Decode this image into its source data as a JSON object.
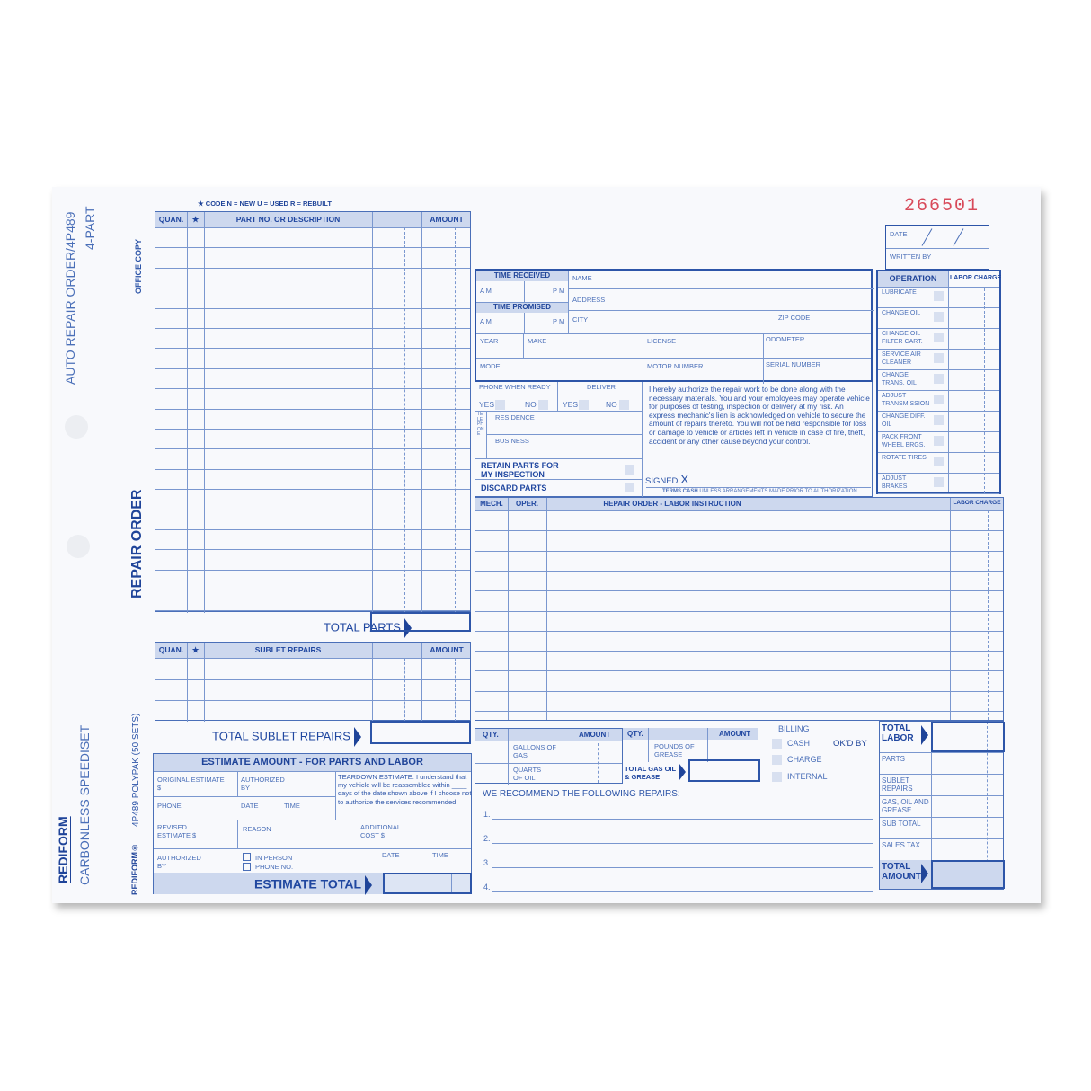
{
  "form_number": "266501",
  "colors": {
    "ink": "#2d55a8",
    "header_fill": "#cdd8ee",
    "paper": "#f8f9fc"
  },
  "side": {
    "title": "AUTO REPAIR ORDER/4P489",
    "parts": "4-PART",
    "copy": "OFFICE COPY",
    "repair_order": "REPAIR ORDER",
    "polypak": "4P489 POLYPAK (50 SETS)",
    "brand": "REDIFORM",
    "brand_small": "REDIFORM®",
    "speediset": "CARBONLESS SPEEDISET"
  },
  "parts": {
    "code_legend": "★ CODE  N = NEW   U = USED   R = REBUILT",
    "headers": [
      "QUAN.",
      "★",
      "PART NO. OR DESCRIPTION",
      "AMOUNT"
    ],
    "total": "TOTAL PARTS"
  },
  "sublet": {
    "headers": [
      "QUAN.",
      "★",
      "SUBLET REPAIRS",
      "AMOUNT"
    ],
    "total": "TOTAL SUBLET REPAIRS"
  },
  "estimate": {
    "title": "ESTIMATE AMOUNT - FOR PARTS AND LABOR",
    "original": "ORIGINAL ESTIMATE $",
    "authorized": "AUTHORIZED BY",
    "teardown": "TEARDOWN ESTIMATE:  I understand that my vehicle will be reassembled within ____ days of the date shown above if I choose not to authorize the services recommended",
    "phone": "PHONE",
    "date": "DATE",
    "time": "TIME",
    "revised": "REVISED ESTIMATE $",
    "reason": "REASON",
    "additional": "ADDITIONAL COST $",
    "authorized2": "AUTHORIZED BY",
    "in_person": "IN PERSON",
    "phone_no": "PHONE NO.",
    "date2": "DATE",
    "time2": "TIME",
    "total": "ESTIMATE TOTAL"
  },
  "customer": {
    "time_received": "TIME RECEIVED",
    "am": "A M",
    "pm": "P M",
    "time_promised": "TIME PROMISED",
    "name": "NAME",
    "address": "ADDRESS",
    "city": "CITY",
    "zip": "ZIP CODE",
    "year": "YEAR",
    "make": "MAKE",
    "license": "LICENSE",
    "odometer": "ODOMETER",
    "model": "MODEL",
    "motor": "MOTOR NUMBER",
    "serial": "SERIAL NUMBER",
    "phone_when_ready": "PHONE WHEN READY",
    "deliver": "DELIVER",
    "yes": "YES",
    "no": "NO",
    "telephone": "TELEPHONE",
    "residence": "RESIDENCE",
    "business": "BUSINESS",
    "retain": "RETAIN PARTS FOR MY INSPECTION",
    "discard": "DISCARD PARTS",
    "authorization": "I hereby authorize the repair work to be done along with the necessary materials. You and your employees may operate vehicle for purposes of testing, inspection or delivery at my risk. An express mechanic's lien is acknowledged on vehicle to secure the amount of repairs thereto. You will not be held responsible for loss or damage to vehicle or articles left in vehicle in case of fire, theft, accident or any other cause beyond your control.",
    "signed": "SIGNED",
    "signed_x": "X",
    "terms_bold": "TERMS CASH",
    "terms": "UNLESS ARRANGEMENTS MADE PRIOR TO AUTHORIZATION"
  },
  "date_box": {
    "date": "DATE",
    "written_by": "WRITTEN BY"
  },
  "operations": {
    "header": "OPERATION",
    "labor": "LABOR CHARGE",
    "items": [
      "LUBRICATE",
      "CHANGE OIL",
      "CHANGE OIL FILTER CART.",
      "SERVICE AIR CLEANER",
      "CHANGE TRANS. OIL",
      "ADJUST TRANSMISSION",
      "CHANGE DIFF. OIL",
      "PACK FRONT WHEEL BRGS.",
      "ROTATE TIRES",
      "ADJUST BRAKES"
    ]
  },
  "labor": {
    "headers": [
      "MECH.",
      "OPER.",
      "REPAIR ORDER - LABOR INSTRUCTION",
      "LABOR CHARGE"
    ]
  },
  "gas": {
    "qty": "QTY.",
    "amount": "AMOUNT",
    "gallons": "GALLONS OF GAS",
    "quarts": "QUARTS OF OIL",
    "pounds": "POUNDS OF GREASE",
    "total": "TOTAL GAS OIL & GREASE"
  },
  "billing": {
    "title": "BILLING",
    "cash": "CASH",
    "charge": "CHARGE",
    "internal": "INTERNAL",
    "okd": "OK'D BY"
  },
  "recommend": {
    "title": "WE RECOMMEND THE FOLLOWING REPAIRS:",
    "lines": [
      "1.",
      "2.",
      "3.",
      "4."
    ]
  },
  "totals": {
    "labor": "TOTAL LABOR",
    "parts": "PARTS",
    "sublet": "SUBLET REPAIRS",
    "gas": "GAS, OIL AND GREASE",
    "sub": "SUB TOTAL",
    "tax": "SALES TAX",
    "amount": "TOTAL AMOUNT"
  }
}
